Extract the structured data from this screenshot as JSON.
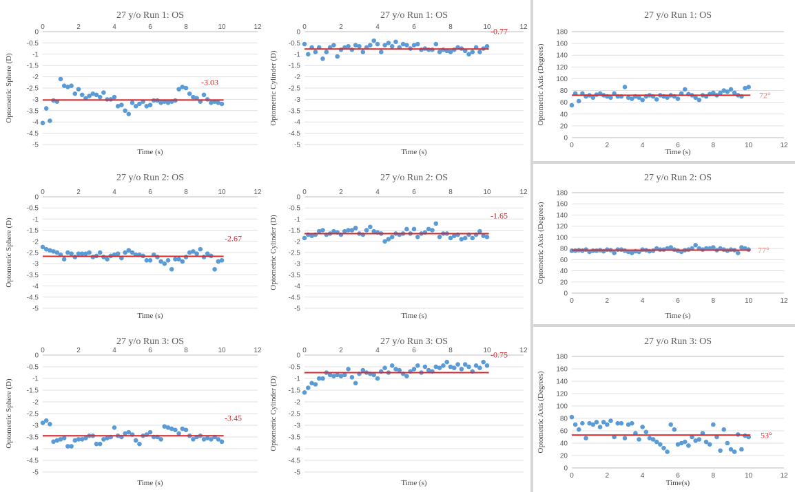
{
  "accent": {
    "point": "#5b9bd5",
    "mean_line": "#d9262a",
    "mean_label": "#d9262a",
    "mean_label_axis": "#e8807f"
  },
  "chart_data": [
    {
      "type": "scatter",
      "title": "27 y/o Run 1: OS",
      "xlabel": "Time (s)",
      "ylabel": "Optometric Sphere (D)",
      "xlim": [
        0,
        12
      ],
      "ylim": [
        -5,
        0
      ],
      "xticks": [
        0,
        2,
        4,
        6,
        8,
        10,
        12
      ],
      "yticks": [
        0,
        -0.5,
        -1,
        -1.5,
        -2,
        -2.5,
        -3,
        -3.5,
        -4,
        -4.5,
        -5
      ],
      "ytick_labels": [
        "0",
        "-0.5",
        "-1",
        "-1.5",
        "-2",
        "-2.5",
        "-3",
        "-3.5",
        "-4",
        "-4.5",
        "-5"
      ],
      "mean": {
        "value": -3.03,
        "x_end": 10.1,
        "label": "-3.03"
      },
      "x": [
        0,
        0.2,
        0.4,
        0.6,
        0.8,
        1.0,
        1.2,
        1.4,
        1.6,
        1.8,
        2.0,
        2.2,
        2.4,
        2.6,
        2.8,
        3.0,
        3.2,
        3.4,
        3.6,
        3.8,
        4.0,
        4.2,
        4.4,
        4.6,
        4.8,
        5.0,
        5.2,
        5.4,
        5.6,
        5.8,
        6.0,
        6.2,
        6.4,
        6.6,
        6.8,
        7.0,
        7.2,
        7.4,
        7.6,
        7.8,
        8.0,
        8.2,
        8.4,
        8.6,
        8.8,
        9.0,
        9.2,
        9.4,
        9.6,
        9.8,
        10.0
      ],
      "y": [
        -4.05,
        -3.4,
        -3.95,
        -3.05,
        -3.1,
        -2.1,
        -2.4,
        -2.45,
        -2.4,
        -2.75,
        -2.55,
        -2.8,
        -2.95,
        -2.85,
        -2.75,
        -2.8,
        -2.9,
        -2.7,
        -3.0,
        -3.0,
        -2.9,
        -3.3,
        -3.25,
        -3.5,
        -3.65,
        -3.15,
        -3.3,
        -3.2,
        -3.1,
        -3.3,
        -3.25,
        -3.05,
        -3.05,
        -3.15,
        -3.1,
        -3.15,
        -3.1,
        -3.05,
        -2.55,
        -2.45,
        -2.5,
        -2.75,
        -2.9,
        -2.95,
        -3.1,
        -2.8,
        -3.0,
        -3.15,
        -3.1,
        -3.15,
        -3.2
      ]
    },
    {
      "type": "scatter",
      "title": "27 y/o Run 1: OS",
      "xlabel": "Time (s)",
      "ylabel": "Optometric Cylinder (D)",
      "xlim": [
        0,
        12
      ],
      "ylim": [
        -5,
        0
      ],
      "xticks": [
        0,
        2,
        4,
        6,
        8,
        10,
        12
      ],
      "yticks": [
        0,
        -0.5,
        -1,
        -1.5,
        -2,
        -2.5,
        -3,
        -3.5,
        -4,
        -4.5,
        -5
      ],
      "ytick_labels": [
        "0",
        "-0.5",
        "-1",
        "-1.5",
        "-2",
        "-2.5",
        "-3",
        "-3.5",
        "-4",
        "-4.5",
        "-5"
      ],
      "mean": {
        "value": -0.77,
        "x_end": 10.1,
        "label": "-0.77"
      },
      "x": [
        0,
        0.2,
        0.4,
        0.6,
        0.8,
        1.0,
        1.2,
        1.4,
        1.6,
        1.8,
        2.0,
        2.2,
        2.4,
        2.6,
        2.8,
        3.0,
        3.2,
        3.4,
        3.6,
        3.8,
        4.0,
        4.2,
        4.4,
        4.6,
        4.8,
        5.0,
        5.2,
        5.4,
        5.6,
        5.8,
        6.0,
        6.2,
        6.4,
        6.6,
        6.8,
        7.0,
        7.2,
        7.4,
        7.6,
        7.8,
        8.0,
        8.2,
        8.4,
        8.6,
        8.8,
        9.0,
        9.2,
        9.4,
        9.6,
        9.8,
        10.0
      ],
      "y": [
        -0.55,
        -1.0,
        -0.7,
        -0.9,
        -0.7,
        -1.2,
        -0.9,
        -0.7,
        -0.6,
        -1.1,
        -0.8,
        -0.7,
        -0.65,
        -0.8,
        -0.6,
        -0.65,
        -0.9,
        -0.7,
        -0.6,
        -0.4,
        -0.55,
        -0.9,
        -0.6,
        -0.5,
        -0.65,
        -0.45,
        -0.7,
        -0.55,
        -0.6,
        -0.75,
        -0.6,
        -0.55,
        -0.8,
        -0.75,
        -0.8,
        -0.8,
        -0.55,
        -0.9,
        -0.8,
        -0.85,
        -0.9,
        -0.8,
        -0.7,
        -0.75,
        -0.85,
        -1.0,
        -0.9,
        -0.7,
        -0.9,
        -0.75,
        -0.65
      ]
    },
    {
      "type": "scatter",
      "title": "27 y/o Run 1: OS",
      "xlabel": "Time (s)",
      "ylabel": "Optometric Axis (Degrees)",
      "xlim": [
        0,
        12
      ],
      "ylim": [
        0,
        180
      ],
      "xticks": [
        0,
        2,
        4,
        6,
        8,
        10,
        12
      ],
      "yticks": [
        0,
        20,
        40,
        60,
        80,
        100,
        120,
        140,
        160,
        180
      ],
      "ytick_labels": [
        "0",
        "20",
        "40",
        "60",
        "80",
        "100",
        "120",
        "140",
        "160",
        "180"
      ],
      "mean": {
        "value": 72,
        "x_end": 10.1,
        "label": "72°"
      },
      "x": [
        0,
        0.2,
        0.4,
        0.6,
        0.8,
        1.0,
        1.2,
        1.4,
        1.6,
        1.8,
        2.0,
        2.2,
        2.4,
        2.6,
        2.8,
        3.0,
        3.2,
        3.4,
        3.6,
        3.8,
        4.0,
        4.2,
        4.4,
        4.6,
        4.8,
        5.0,
        5.2,
        5.4,
        5.6,
        5.8,
        6.0,
        6.2,
        6.4,
        6.6,
        6.8,
        7.0,
        7.2,
        7.4,
        7.6,
        7.8,
        8.0,
        8.2,
        8.4,
        8.6,
        8.8,
        9.0,
        9.2,
        9.4,
        9.6,
        9.8,
        10.0
      ],
      "y": [
        55,
        75,
        62,
        75,
        70,
        72,
        68,
        73,
        75,
        72,
        70,
        68,
        75,
        70,
        70,
        86,
        68,
        66,
        70,
        68,
        64,
        70,
        72,
        70,
        65,
        72,
        70,
        68,
        72,
        70,
        66,
        75,
        82,
        74,
        72,
        68,
        64,
        72,
        70,
        74,
        76,
        72,
        76,
        80,
        78,
        82,
        76,
        72,
        70,
        84,
        86
      ]
    },
    {
      "type": "scatter",
      "title": "27 y/o Run 2: OS",
      "xlabel": "Time (s)",
      "ylabel": "Optometric Sphere (D)",
      "xlim": [
        0,
        12
      ],
      "ylim": [
        -5,
        0
      ],
      "xticks": [
        0,
        2,
        4,
        6,
        8,
        10,
        12
      ],
      "yticks": [
        0,
        -0.5,
        -1,
        -1.5,
        -2,
        -2.5,
        -3,
        -3.5,
        -4,
        -4.5,
        -5
      ],
      "ytick_labels": [
        "0",
        "-0.5",
        "-1",
        "-1.5",
        "-2",
        "-2.5",
        "-3",
        "-3.5",
        "-4",
        "-4.5",
        "-5"
      ],
      "mean": {
        "value": -2.67,
        "x_end": 10.1,
        "label": "-2.67"
      },
      "x": [
        0,
        0.2,
        0.4,
        0.6,
        0.8,
        1.0,
        1.2,
        1.4,
        1.6,
        1.8,
        2.0,
        2.2,
        2.4,
        2.6,
        2.8,
        3.0,
        3.2,
        3.4,
        3.6,
        3.8,
        4.0,
        4.2,
        4.4,
        4.6,
        4.8,
        5.0,
        5.2,
        5.4,
        5.6,
        5.8,
        6.0,
        6.2,
        6.4,
        6.6,
        6.8,
        7.0,
        7.2,
        7.4,
        7.6,
        7.8,
        8.0,
        8.2,
        8.4,
        8.6,
        8.8,
        9.0,
        9.2,
        9.4,
        9.6,
        9.8,
        10.0
      ],
      "y": [
        -2.25,
        -2.35,
        -2.4,
        -2.45,
        -2.5,
        -2.6,
        -2.8,
        -2.5,
        -2.55,
        -2.7,
        -2.55,
        -2.55,
        -2.55,
        -2.5,
        -2.7,
        -2.65,
        -2.5,
        -2.7,
        -2.8,
        -2.65,
        -2.6,
        -2.55,
        -2.75,
        -2.5,
        -2.4,
        -2.5,
        -2.6,
        -2.6,
        -2.65,
        -2.85,
        -2.85,
        -2.6,
        -2.7,
        -2.9,
        -3.0,
        -2.85,
        -3.25,
        -2.8,
        -2.8,
        -2.9,
        -2.7,
        -2.5,
        -2.45,
        -2.55,
        -2.35,
        -2.7,
        -2.55,
        -2.65,
        -3.25,
        -2.9,
        -2.85
      ]
    },
    {
      "type": "scatter",
      "title": "27 y/o Run 2: OS",
      "xlabel": "Time (s)",
      "ylabel": "Optometric Cylinder (D)",
      "xlim": [
        0,
        12
      ],
      "ylim": [
        -5,
        0
      ],
      "xticks": [
        0,
        2,
        4,
        6,
        8,
        10,
        12
      ],
      "yticks": [
        0,
        -0.5,
        -1,
        -1.5,
        -2,
        -2.5,
        -3,
        -3.5,
        -4,
        -4.5,
        -5
      ],
      "ytick_labels": [
        "0",
        "-0.5",
        "-1",
        "-1.5",
        "-2",
        "-2.5",
        "-3",
        "-3.5",
        "-4",
        "-4.5",
        "-5"
      ],
      "mean": {
        "value": -1.65,
        "x_end": 10.1,
        "label": "-1.65"
      },
      "x": [
        0,
        0.2,
        0.4,
        0.6,
        0.8,
        1.0,
        1.2,
        1.4,
        1.6,
        1.8,
        2.0,
        2.2,
        2.4,
        2.6,
        2.8,
        3.0,
        3.2,
        3.4,
        3.6,
        3.8,
        4.0,
        4.2,
        4.4,
        4.6,
        4.8,
        5.0,
        5.2,
        5.4,
        5.6,
        5.8,
        6.0,
        6.2,
        6.4,
        6.6,
        6.8,
        7.0,
        7.2,
        7.4,
        7.6,
        7.8,
        8.0,
        8.2,
        8.4,
        8.6,
        8.8,
        9.0,
        9.2,
        9.4,
        9.6,
        9.8,
        10.0
      ],
      "y": [
        -1.85,
        -1.7,
        -1.75,
        -1.7,
        -1.55,
        -1.5,
        -1.7,
        -1.65,
        -1.55,
        -1.6,
        -1.7,
        -1.55,
        -1.5,
        -1.5,
        -1.4,
        -1.65,
        -1.7,
        -1.5,
        -1.35,
        -1.55,
        -1.6,
        -1.65,
        -2.0,
        -1.9,
        -1.8,
        -1.65,
        -1.7,
        -1.65,
        -1.45,
        -1.65,
        -1.45,
        -1.8,
        -1.65,
        -1.6,
        -1.45,
        -1.5,
        -1.2,
        -1.8,
        -1.65,
        -1.65,
        -1.85,
        -1.75,
        -1.7,
        -1.9,
        -1.85,
        -1.7,
        -1.85,
        -1.7,
        -1.55,
        -1.75,
        -1.8
      ]
    },
    {
      "type": "scatter",
      "title": "27 y/o Run 2: OS",
      "xlabel": "Time (s)",
      "ylabel": "Optometric Axis (Degrees)",
      "xlim": [
        0,
        12
      ],
      "ylim": [
        0,
        180
      ],
      "xticks": [
        0,
        2,
        4,
        6,
        8,
        10,
        12
      ],
      "yticks": [
        0,
        20,
        40,
        60,
        80,
        100,
        120,
        140,
        160,
        180
      ],
      "ytick_labels": [
        "0",
        "20",
        "40",
        "60",
        "80",
        "100",
        "120",
        "140",
        "160",
        "180"
      ],
      "mean": {
        "value": 77,
        "x_end": 10.1,
        "label": "77°"
      },
      "x": [
        0,
        0.2,
        0.4,
        0.6,
        0.8,
        1.0,
        1.2,
        1.4,
        1.6,
        1.8,
        2.0,
        2.2,
        2.4,
        2.6,
        2.8,
        3.0,
        3.2,
        3.4,
        3.6,
        3.8,
        4.0,
        4.2,
        4.4,
        4.6,
        4.8,
        5.0,
        5.2,
        5.4,
        5.6,
        5.8,
        6.0,
        6.2,
        6.4,
        6.6,
        6.8,
        7.0,
        7.2,
        7.4,
        7.6,
        7.8,
        8.0,
        8.2,
        8.4,
        8.6,
        8.8,
        9.0,
        9.2,
        9.4,
        9.6,
        9.8,
        10.0
      ],
      "y": [
        76,
        76,
        77,
        76,
        78,
        74,
        76,
        76,
        77,
        75,
        78,
        77,
        72,
        78,
        78,
        76,
        74,
        72,
        75,
        74,
        78,
        77,
        75,
        76,
        80,
        78,
        78,
        80,
        82,
        78,
        76,
        74,
        77,
        78,
        80,
        86,
        80,
        78,
        80,
        80,
        82,
        77,
        80,
        78,
        76,
        78,
        77,
        72,
        82,
        80,
        78
      ]
    },
    {
      "type": "scatter",
      "title": "27 y/o Run 3: OS",
      "xlabel": "Time (s)",
      "ylabel": "Optometric Sphere (D)",
      "xlim": [
        0,
        12
      ],
      "ylim": [
        -5,
        0
      ],
      "xticks": [
        0,
        2,
        4,
        6,
        8,
        10,
        12
      ],
      "yticks": [
        0,
        -0.5,
        -1,
        -1.5,
        -2,
        -2.5,
        -3,
        -3.5,
        -4,
        -4.5,
        -5
      ],
      "ytick_labels": [
        "0",
        "-0.5",
        "-1",
        "-1.5",
        "-2",
        "-2.5",
        "-3",
        "-3.5",
        "-4",
        "-4.5",
        "-5"
      ],
      "mean": {
        "value": -3.45,
        "x_end": 10.1,
        "label": "-3.45"
      },
      "x": [
        0,
        0.2,
        0.4,
        0.6,
        0.8,
        1.0,
        1.2,
        1.4,
        1.6,
        1.8,
        2.0,
        2.2,
        2.4,
        2.6,
        2.8,
        3.0,
        3.2,
        3.4,
        3.6,
        3.8,
        4.0,
        4.2,
        4.4,
        4.6,
        4.8,
        5.0,
        5.2,
        5.4,
        5.6,
        5.8,
        6.0,
        6.2,
        6.4,
        6.6,
        6.8,
        7.0,
        7.2,
        7.4,
        7.6,
        7.8,
        8.0,
        8.2,
        8.4,
        8.6,
        8.8,
        9.0,
        9.2,
        9.4,
        9.6,
        9.8,
        10.0
      ],
      "y": [
        -2.9,
        -2.8,
        -2.95,
        -3.7,
        -3.65,
        -3.6,
        -3.55,
        -3.9,
        -3.9,
        -3.65,
        -3.6,
        -3.6,
        -3.55,
        -3.45,
        -3.45,
        -3.8,
        -3.8,
        -3.6,
        -3.55,
        -3.5,
        -3.1,
        -3.45,
        -3.5,
        -3.35,
        -3.3,
        -3.4,
        -3.65,
        -3.8,
        -3.45,
        -3.4,
        -3.3,
        -3.5,
        -3.5,
        -3.6,
        -3.05,
        -3.1,
        -3.15,
        -3.2,
        -3.35,
        -3.15,
        -3.2,
        -3.45,
        -3.6,
        -3.5,
        -3.45,
        -3.6,
        -3.55,
        -3.6,
        -3.5,
        -3.6,
        -3.7
      ]
    },
    {
      "type": "scatter",
      "title": "27 y/o Run 3: OS",
      "xlabel": "Time (s)",
      "ylabel": "Optometric Cylinder (D)",
      "xlim": [
        0,
        12
      ],
      "ylim": [
        -5,
        0
      ],
      "xticks": [
        0,
        2,
        4,
        6,
        8,
        10,
        12
      ],
      "yticks": [
        0,
        -0.5,
        -1,
        -1.5,
        -2,
        -2.5,
        -3,
        -3.5,
        -4,
        -4.5,
        -5
      ],
      "ytick_labels": [
        "0",
        "-0.5",
        "-1",
        "-1.5",
        "-2",
        "-2.5",
        "-3",
        "-3.5",
        "-4",
        "-4.5",
        "-5"
      ],
      "mean": {
        "value": -0.75,
        "x_end": 10.1,
        "label": "-0.75"
      },
      "x": [
        0,
        0.2,
        0.4,
        0.6,
        0.8,
        1.0,
        1.2,
        1.4,
        1.6,
        1.8,
        2.0,
        2.2,
        2.4,
        2.6,
        2.8,
        3.0,
        3.2,
        3.4,
        3.6,
        3.8,
        4.0,
        4.2,
        4.4,
        4.6,
        4.8,
        5.0,
        5.2,
        5.4,
        5.6,
        5.8,
        6.0,
        6.2,
        6.4,
        6.6,
        6.8,
        7.0,
        7.2,
        7.4,
        7.6,
        7.8,
        8.0,
        8.2,
        8.4,
        8.6,
        8.8,
        9.0,
        9.2,
        9.4,
        9.6,
        9.8,
        10.0
      ],
      "y": [
        -1.6,
        -1.4,
        -1.2,
        -1.25,
        -1.0,
        -1.0,
        -0.75,
        -0.85,
        -0.9,
        -0.85,
        -0.9,
        -0.85,
        -0.6,
        -0.95,
        -1.2,
        -0.8,
        -0.65,
        -0.75,
        -0.8,
        -0.85,
        -1.0,
        -0.7,
        -0.55,
        -0.75,
        -0.45,
        -0.6,
        -0.65,
        -0.8,
        -0.9,
        -0.7,
        -0.6,
        -0.45,
        -0.75,
        -0.5,
        -0.65,
        -0.7,
        -0.5,
        -0.55,
        -0.45,
        -0.3,
        -0.5,
        -0.55,
        -0.4,
        -0.6,
        -0.4,
        -0.5,
        -0.7,
        -0.45,
        -0.55,
        -0.3,
        -0.45
      ]
    },
    {
      "type": "scatter",
      "title": "27 y/o Run 3: OS",
      "xlabel": "Time(s)",
      "ylabel": "Optometric Axis (Degrees)",
      "xlim": [
        0,
        12
      ],
      "ylim": [
        0,
        180
      ],
      "xticks": [
        0,
        2,
        4,
        6,
        8,
        10,
        12
      ],
      "yticks": [
        0,
        20,
        40,
        60,
        80,
        100,
        120,
        140,
        160,
        180
      ],
      "ytick_labels": [
        "0",
        "20",
        "40",
        "60",
        "80",
        "100",
        "120",
        "140",
        "160",
        "180"
      ],
      "mean": {
        "value": 53,
        "x_end": 10.1,
        "label": "53°"
      },
      "x": [
        0,
        0.2,
        0.4,
        0.6,
        0.8,
        1.0,
        1.2,
        1.4,
        1.6,
        1.8,
        2.0,
        2.2,
        2.4,
        2.6,
        2.8,
        3.0,
        3.2,
        3.4,
        3.6,
        3.8,
        4.0,
        4.2,
        4.4,
        4.6,
        4.8,
        5.0,
        5.2,
        5.4,
        5.6,
        5.8,
        6.0,
        6.2,
        6.4,
        6.6,
        6.8,
        7.0,
        7.2,
        7.4,
        7.6,
        7.8,
        8.0,
        8.2,
        8.4,
        8.6,
        8.8,
        9.0,
        9.2,
        9.4,
        9.6,
        9.8,
        10.0
      ],
      "y": [
        82,
        70,
        62,
        72,
        48,
        72,
        70,
        74,
        66,
        74,
        70,
        76,
        50,
        72,
        72,
        48,
        70,
        72,
        56,
        46,
        66,
        58,
        48,
        46,
        42,
        38,
        32,
        26,
        70,
        62,
        38,
        40,
        42,
        36,
        50,
        44,
        46,
        56,
        42,
        38,
        70,
        50,
        28,
        62,
        40,
        30,
        26,
        54,
        30,
        52,
        50
      ]
    }
  ]
}
